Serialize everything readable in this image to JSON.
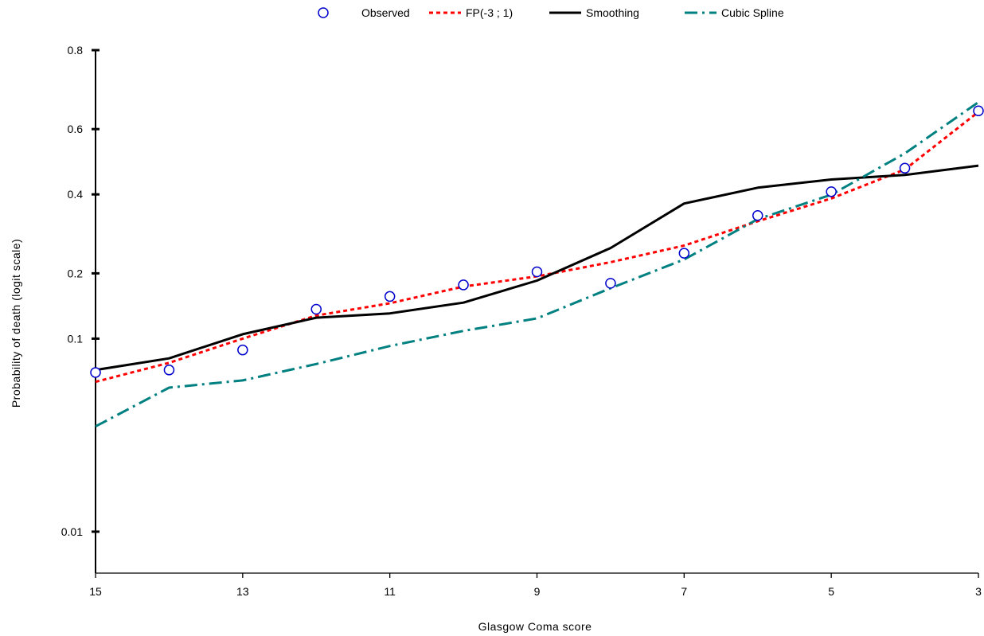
{
  "chart_data": {
    "type": "line",
    "title": "",
    "xlabel": "Glasgow Coma score",
    "ylabel": "Probability of death (logit scale)",
    "x_reversed": true,
    "xlim": [
      15,
      3
    ],
    "xticks": [
      "15",
      "13",
      "11",
      "9",
      "7",
      "5",
      "3"
    ],
    "y_scale": "logit",
    "ylim": [
      0.006,
      0.8
    ],
    "yticks": [
      "0.8",
      "0.6",
      "0.4",
      "0.2",
      "0.1",
      "0.01"
    ],
    "grid": false,
    "legend_position": "top",
    "x": [
      15,
      14,
      13,
      12,
      11,
      10,
      9,
      8,
      7,
      6,
      5,
      4,
      3
    ],
    "series": [
      {
        "name": "Observed",
        "style": "markers",
        "color": "#0000cc",
        "values": [
          0.068,
          0.07,
          0.088,
          0.138,
          0.158,
          0.178,
          0.203,
          0.181,
          0.243,
          0.339,
          0.408,
          0.48,
          0.653
        ]
      },
      {
        "name": "FP(-3 ; 1)",
        "style": "dotted",
        "color": "#ff0000",
        "values": [
          0.061,
          0.076,
          0.1,
          0.129,
          0.147,
          0.175,
          0.194,
          0.223,
          0.261,
          0.323,
          0.388,
          0.476,
          0.65
        ]
      },
      {
        "name": "Smoothing",
        "style": "solid",
        "color": "#000000",
        "values": [
          0.07,
          0.08,
          0.105,
          0.126,
          0.132,
          0.148,
          0.186,
          0.255,
          0.373,
          0.42,
          0.445,
          0.459,
          0.488
        ]
      },
      {
        "name": "Cubic Spline",
        "style": "dash-dot",
        "color": "#008080",
        "values": [
          0.036,
          0.057,
          0.062,
          0.075,
          0.092,
          0.109,
          0.125,
          0.172,
          0.229,
          0.329,
          0.399,
          0.526,
          0.677
        ]
      }
    ]
  }
}
